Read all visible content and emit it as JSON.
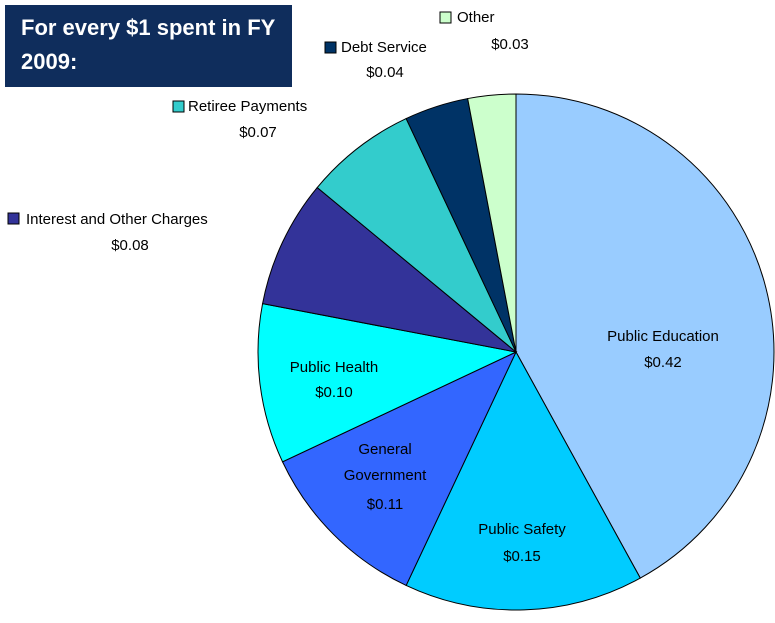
{
  "chart_data": {
    "type": "pie",
    "title": "For every $1 spent in FY 2009:",
    "categories": [
      "Public Education",
      "Public Safety",
      "General Government",
      "Public Health",
      "Interest and Other Charges",
      "Retiree Payments",
      "Debt Service",
      "Other"
    ],
    "values": [
      0.42,
      0.15,
      0.11,
      0.1,
      0.08,
      0.07,
      0.04,
      0.03
    ],
    "value_labels": [
      "$0.42",
      "$0.15",
      "$0.11",
      "$0.10",
      "$0.08",
      "$0.07",
      "$0.04",
      "$0.03"
    ],
    "colors": [
      "#99ccff",
      "#00ccff",
      "#3366ff",
      "#00ffff",
      "#333399",
      "#33cccc",
      "#003366",
      "#ccffcc"
    ]
  }
}
